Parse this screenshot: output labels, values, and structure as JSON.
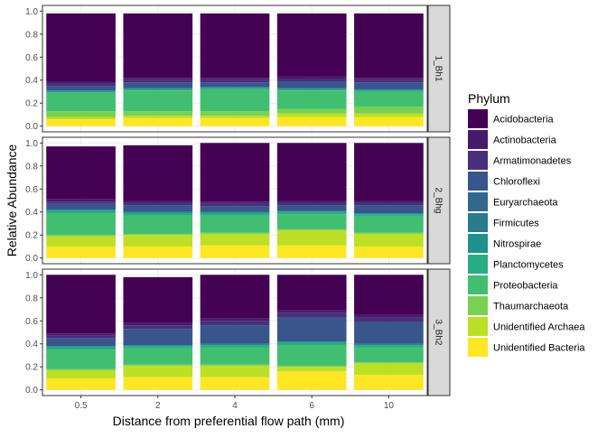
{
  "chart_data": {
    "type": "bar",
    "stacked": true,
    "facet": "rows",
    "xlabel": "Distance from preferential flow path (mm)",
    "ylabel": "Relative Abundance",
    "ylim": [
      0,
      1
    ],
    "yticks": [
      "0.0",
      "0.2",
      "0.4",
      "0.6",
      "0.8",
      "1.0"
    ],
    "categories": [
      "0.5",
      "2",
      "4",
      "6",
      "10"
    ],
    "legend": {
      "title": "Phylum",
      "position": "right",
      "entries": [
        {
          "name": "Acidobacteria",
          "color": "#440154"
        },
        {
          "name": "Actinobacteria",
          "color": "#481A6C"
        },
        {
          "name": "Armatimonadetes",
          "color": "#472F7D"
        },
        {
          "name": "Chloroflexi",
          "color": "#39568C"
        },
        {
          "name": "Euryarchaeota",
          "color": "#31688E"
        },
        {
          "name": "Firmicutes",
          "color": "#287C8E"
        },
        {
          "name": "Nitrospirae",
          "color": "#20908D"
        },
        {
          "name": "Planctomycetes",
          "color": "#27AD81"
        },
        {
          "name": "Proteobacteria",
          "color": "#42BE71"
        },
        {
          "name": "Thaumarchaeota",
          "color": "#7AD151"
        },
        {
          "name": "Unidentified Archaea",
          "color": "#BDDF26"
        },
        {
          "name": "Unidentified Bacteria",
          "color": "#FDE725"
        }
      ]
    },
    "panels": [
      {
        "label": "1_Bh1",
        "bars": [
          {
            "x": "0.5",
            "segments": [
              {
                "phylum": "Unidentified Bacteria",
                "value": 0.06
              },
              {
                "phylum": "Unidentified Archaea",
                "value": 0.02
              },
              {
                "phylum": "Thaumarchaeota",
                "value": 0.05
              },
              {
                "phylum": "Proteobacteria",
                "value": 0.16
              },
              {
                "phylum": "Planctomycetes",
                "value": 0.01
              },
              {
                "phylum": "Nitrospirae",
                "value": 0.01
              },
              {
                "phylum": "Chloroflexi",
                "value": 0.04
              },
              {
                "phylum": "Armatimonadetes",
                "value": 0.02
              },
              {
                "phylum": "Actinobacteria",
                "value": 0.02
              },
              {
                "phylum": "Acidobacteria",
                "value": 0.59
              }
            ]
          },
          {
            "x": "2",
            "segments": [
              {
                "phylum": "Unidentified Bacteria",
                "value": 0.07
              },
              {
                "phylum": "Unidentified Archaea",
                "value": 0.02
              },
              {
                "phylum": "Thaumarchaeota",
                "value": 0.04
              },
              {
                "phylum": "Proteobacteria",
                "value": 0.18
              },
              {
                "phylum": "Planctomycetes",
                "value": 0.01
              },
              {
                "phylum": "Nitrospirae",
                "value": 0.01
              },
              {
                "phylum": "Chloroflexi",
                "value": 0.05
              },
              {
                "phylum": "Armatimonadetes",
                "value": 0.02
              },
              {
                "phylum": "Actinobacteria",
                "value": 0.02
              },
              {
                "phylum": "Acidobacteria",
                "value": 0.56
              }
            ]
          },
          {
            "x": "4",
            "segments": [
              {
                "phylum": "Unidentified Bacteria",
                "value": 0.07
              },
              {
                "phylum": "Unidentified Archaea",
                "value": 0.02
              },
              {
                "phylum": "Thaumarchaeota",
                "value": 0.04
              },
              {
                "phylum": "Proteobacteria",
                "value": 0.19
              },
              {
                "phylum": "Planctomycetes",
                "value": 0.01
              },
              {
                "phylum": "Nitrospirae",
                "value": 0.01
              },
              {
                "phylum": "Chloroflexi",
                "value": 0.04
              },
              {
                "phylum": "Armatimonadetes",
                "value": 0.02
              },
              {
                "phylum": "Actinobacteria",
                "value": 0.02
              },
              {
                "phylum": "Acidobacteria",
                "value": 0.56
              }
            ]
          },
          {
            "x": "6",
            "segments": [
              {
                "phylum": "Unidentified Bacteria",
                "value": 0.08
              },
              {
                "phylum": "Unidentified Archaea",
                "value": 0.03
              },
              {
                "phylum": "Thaumarchaeota",
                "value": 0.04
              },
              {
                "phylum": "Proteobacteria",
                "value": 0.16
              },
              {
                "phylum": "Planctomycetes",
                "value": 0.01
              },
              {
                "phylum": "Nitrospirae",
                "value": 0.01
              },
              {
                "phylum": "Chloroflexi",
                "value": 0.06
              },
              {
                "phylum": "Armatimonadetes",
                "value": 0.02
              },
              {
                "phylum": "Actinobacteria",
                "value": 0.02
              },
              {
                "phylum": "Acidobacteria",
                "value": 0.55
              }
            ]
          },
          {
            "x": "10",
            "segments": [
              {
                "phylum": "Unidentified Bacteria",
                "value": 0.08
              },
              {
                "phylum": "Unidentified Archaea",
                "value": 0.03
              },
              {
                "phylum": "Thaumarchaeota",
                "value": 0.06
              },
              {
                "phylum": "Proteobacteria",
                "value": 0.13
              },
              {
                "phylum": "Planctomycetes",
                "value": 0.01
              },
              {
                "phylum": "Nitrospirae",
                "value": 0.01
              },
              {
                "phylum": "Chloroflexi",
                "value": 0.06
              },
              {
                "phylum": "Armatimonadetes",
                "value": 0.02
              },
              {
                "phylum": "Actinobacteria",
                "value": 0.02
              },
              {
                "phylum": "Acidobacteria",
                "value": 0.56
              }
            ]
          }
        ]
      },
      {
        "label": "2_Bhg",
        "bars": [
          {
            "x": "0.5",
            "segments": [
              {
                "phylum": "Unidentified Bacteria",
                "value": 0.1
              },
              {
                "phylum": "Unidentified Archaea",
                "value": 0.09
              },
              {
                "phylum": "Thaumarchaeota",
                "value": 0.01
              },
              {
                "phylum": "Proteobacteria",
                "value": 0.19
              },
              {
                "phylum": "Planctomycetes",
                "value": 0.02
              },
              {
                "phylum": "Nitrospirae",
                "value": 0.01
              },
              {
                "phylum": "Chloroflexi",
                "value": 0.05
              },
              {
                "phylum": "Armatimonadetes",
                "value": 0.02
              },
              {
                "phylum": "Actinobacteria",
                "value": 0.02
              },
              {
                "phylum": "Acidobacteria",
                "value": 0.46
              }
            ]
          },
          {
            "x": "2",
            "segments": [
              {
                "phylum": "Unidentified Bacteria",
                "value": 0.1
              },
              {
                "phylum": "Unidentified Archaea",
                "value": 0.1
              },
              {
                "phylum": "Thaumarchaeota",
                "value": 0.01
              },
              {
                "phylum": "Proteobacteria",
                "value": 0.16
              },
              {
                "phylum": "Planctomycetes",
                "value": 0.02
              },
              {
                "phylum": "Nitrospirae",
                "value": 0.01
              },
              {
                "phylum": "Chloroflexi",
                "value": 0.06
              },
              {
                "phylum": "Armatimonadetes",
                "value": 0.02
              },
              {
                "phylum": "Actinobacteria",
                "value": 0.02
              },
              {
                "phylum": "Acidobacteria",
                "value": 0.48
              }
            ]
          },
          {
            "x": "4",
            "segments": [
              {
                "phylum": "Unidentified Bacteria",
                "value": 0.11
              },
              {
                "phylum": "Unidentified Archaea",
                "value": 0.1
              },
              {
                "phylum": "Thaumarchaeota",
                "value": 0.01
              },
              {
                "phylum": "Proteobacteria",
                "value": 0.15
              },
              {
                "phylum": "Planctomycetes",
                "value": 0.02
              },
              {
                "phylum": "Nitrospirae",
                "value": 0.01
              },
              {
                "phylum": "Chloroflexi",
                "value": 0.05
              },
              {
                "phylum": "Armatimonadetes",
                "value": 0.02
              },
              {
                "phylum": "Actinobacteria",
                "value": 0.02
              },
              {
                "phylum": "Acidobacteria",
                "value": 0.51
              }
            ]
          },
          {
            "x": "6",
            "segments": [
              {
                "phylum": "Unidentified Bacteria",
                "value": 0.11
              },
              {
                "phylum": "Unidentified Archaea",
                "value": 0.13
              },
              {
                "phylum": "Thaumarchaeota",
                "value": 0.01
              },
              {
                "phylum": "Proteobacteria",
                "value": 0.13
              },
              {
                "phylum": "Planctomycetes",
                "value": 0.02
              },
              {
                "phylum": "Nitrospirae",
                "value": 0.01
              },
              {
                "phylum": "Chloroflexi",
                "value": 0.05
              },
              {
                "phylum": "Armatimonadetes",
                "value": 0.02
              },
              {
                "phylum": "Actinobacteria",
                "value": 0.02
              },
              {
                "phylum": "Acidobacteria",
                "value": 0.5
              }
            ]
          },
          {
            "x": "10",
            "segments": [
              {
                "phylum": "Unidentified Bacteria",
                "value": 0.1
              },
              {
                "phylum": "Unidentified Archaea",
                "value": 0.11
              },
              {
                "phylum": "Thaumarchaeota",
                "value": 0.01
              },
              {
                "phylum": "Proteobacteria",
                "value": 0.14
              },
              {
                "phylum": "Planctomycetes",
                "value": 0.02
              },
              {
                "phylum": "Nitrospirae",
                "value": 0.01
              },
              {
                "phylum": "Chloroflexi",
                "value": 0.07
              },
              {
                "phylum": "Armatimonadetes",
                "value": 0.02
              },
              {
                "phylum": "Actinobacteria",
                "value": 0.02
              },
              {
                "phylum": "Acidobacteria",
                "value": 0.5
              }
            ]
          }
        ]
      },
      {
        "label": "3_Bh2",
        "bars": [
          {
            "x": "0.5",
            "segments": [
              {
                "phylum": "Unidentified Bacteria",
                "value": 0.1
              },
              {
                "phylum": "Unidentified Archaea",
                "value": 0.07
              },
              {
                "phylum": "Thaumarchaeota",
                "value": 0.01
              },
              {
                "phylum": "Proteobacteria",
                "value": 0.17
              },
              {
                "phylum": "Planctomycetes",
                "value": 0.02
              },
              {
                "phylum": "Nitrospirae",
                "value": 0.01
              },
              {
                "phylum": "Chloroflexi",
                "value": 0.07
              },
              {
                "phylum": "Armatimonadetes",
                "value": 0.02
              },
              {
                "phylum": "Actinobacteria",
                "value": 0.02
              },
              {
                "phylum": "Acidobacteria",
                "value": 0.51
              }
            ]
          },
          {
            "x": "2",
            "segments": [
              {
                "phylum": "Unidentified Bacteria",
                "value": 0.11
              },
              {
                "phylum": "Unidentified Archaea",
                "value": 0.1
              },
              {
                "phylum": "Thaumarchaeota",
                "value": 0.01
              },
              {
                "phylum": "Proteobacteria",
                "value": 0.14
              },
              {
                "phylum": "Planctomycetes",
                "value": 0.02
              },
              {
                "phylum": "Nitrospirae",
                "value": 0.01
              },
              {
                "phylum": "Chloroflexi",
                "value": 0.14
              },
              {
                "phylum": "Armatimonadetes",
                "value": 0.03
              },
              {
                "phylum": "Actinobacteria",
                "value": 0.02
              },
              {
                "phylum": "Acidobacteria",
                "value": 0.4
              }
            ]
          },
          {
            "x": "4",
            "segments": [
              {
                "phylum": "Unidentified Bacteria",
                "value": 0.11
              },
              {
                "phylum": "Unidentified Archaea",
                "value": 0.1
              },
              {
                "phylum": "Thaumarchaeota",
                "value": 0.01
              },
              {
                "phylum": "Proteobacteria",
                "value": 0.15
              },
              {
                "phylum": "Planctomycetes",
                "value": 0.02
              },
              {
                "phylum": "Nitrospirae",
                "value": 0.01
              },
              {
                "phylum": "Chloroflexi",
                "value": 0.16
              },
              {
                "phylum": "Armatimonadetes",
                "value": 0.04
              },
              {
                "phylum": "Actinobacteria",
                "value": 0.02
              },
              {
                "phylum": "Acidobacteria",
                "value": 0.38
              }
            ]
          },
          {
            "x": "6",
            "segments": [
              {
                "phylum": "Unidentified Bacteria",
                "value": 0.16
              },
              {
                "phylum": "Unidentified Archaea",
                "value": 0.04
              },
              {
                "phylum": "Thaumarchaeota",
                "value": 0.01
              },
              {
                "phylum": "Proteobacteria",
                "value": 0.18
              },
              {
                "phylum": "Planctomycetes",
                "value": 0.02
              },
              {
                "phylum": "Nitrospirae",
                "value": 0.01
              },
              {
                "phylum": "Chloroflexi",
                "value": 0.21
              },
              {
                "phylum": "Armatimonadetes",
                "value": 0.04
              },
              {
                "phylum": "Actinobacteria",
                "value": 0.02
              },
              {
                "phylum": "Acidobacteria",
                "value": 0.31
              }
            ]
          },
          {
            "x": "10",
            "segments": [
              {
                "phylum": "Unidentified Bacteria",
                "value": 0.13
              },
              {
                "phylum": "Unidentified Archaea",
                "value": 0.1
              },
              {
                "phylum": "Thaumarchaeota",
                "value": 0.01
              },
              {
                "phylum": "Proteobacteria",
                "value": 0.13
              },
              {
                "phylum": "Planctomycetes",
                "value": 0.02
              },
              {
                "phylum": "Nitrospirae",
                "value": 0.01
              },
              {
                "phylum": "Chloroflexi",
                "value": 0.19
              },
              {
                "phylum": "Armatimonadetes",
                "value": 0.04
              },
              {
                "phylum": "Actinobacteria",
                "value": 0.02
              },
              {
                "phylum": "Acidobacteria",
                "value": 0.35
              }
            ]
          }
        ]
      }
    ]
  }
}
